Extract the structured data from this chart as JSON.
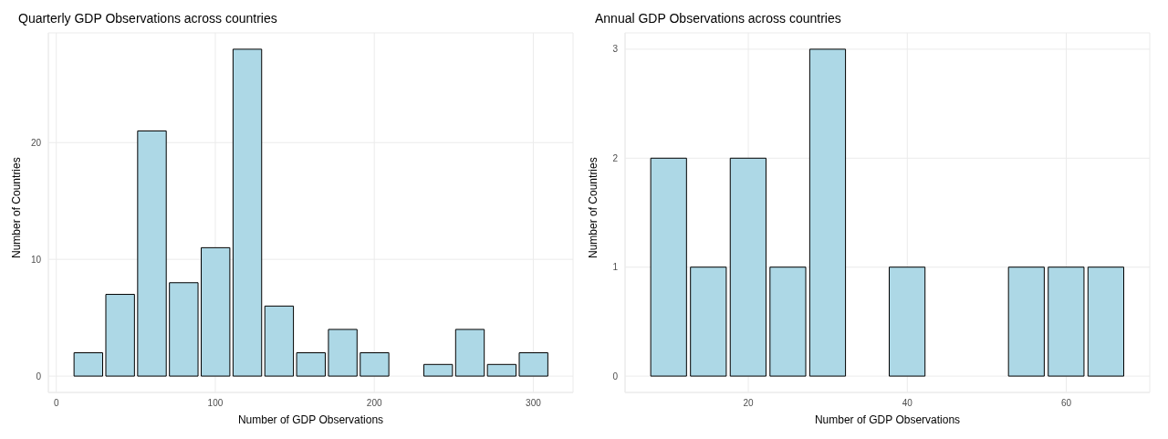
{
  "chart_data": [
    {
      "type": "histogram",
      "title": "Quarterly GDP Observations across countries",
      "xlabel": "Number of GDP Observations",
      "ylabel": "Number of Countries",
      "bins": [
        10,
        30,
        50,
        70,
        90,
        110,
        130,
        150,
        170,
        190,
        210,
        230,
        250,
        270,
        290,
        310
      ],
      "values": [
        2,
        7,
        21,
        8,
        11,
        28,
        6,
        2,
        4,
        2,
        0,
        1,
        4,
        1,
        2
      ],
      "color": "#add8e6",
      "xlim": [
        -5,
        325
      ],
      "ylim": [
        -1.4,
        29.4
      ],
      "xticks": [
        0,
        100,
        200,
        300
      ],
      "yticks": [
        0,
        10,
        20
      ],
      "grid": true
    },
    {
      "type": "histogram",
      "title": "Annual GDP Observations across countries",
      "xlabel": "Number of GDP Observations",
      "ylabel": "Number of Countries",
      "bins": [
        7.5,
        12.5,
        17.5,
        22.5,
        27.5,
        32.5,
        37.5,
        42.5,
        47.5,
        52.5,
        57.5,
        62.5,
        67.5
      ],
      "values": [
        2,
        1,
        2,
        1,
        3,
        0,
        1,
        0,
        0,
        1,
        1,
        1
      ],
      "color": "#add8e6",
      "xlim": [
        4.5,
        70.5
      ],
      "ylim": [
        -0.15,
        3.15
      ],
      "xticks": [
        20,
        40,
        60
      ],
      "yticks": [
        0,
        1,
        2,
        3
      ],
      "grid": true
    }
  ]
}
